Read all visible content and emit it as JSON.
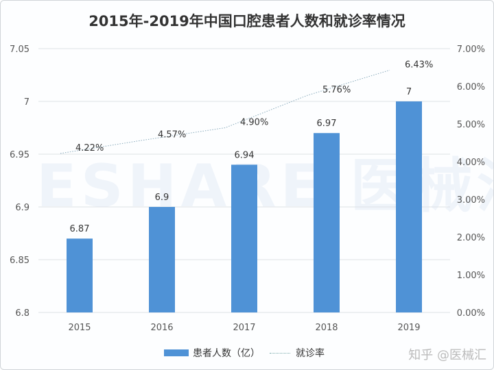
{
  "chart_data": {
    "type": "bar",
    "title": "2015年-2019年中国口腔患者人数和就诊率情况",
    "categories": [
      "2015",
      "2016",
      "2017",
      "2018",
      "2019"
    ],
    "series": [
      {
        "name": "患者人数（亿）",
        "type": "bar",
        "axis": "left",
        "values": [
          6.87,
          6.9,
          6.94,
          6.97,
          7
        ],
        "labels": [
          "6.87",
          "6.9",
          "6.94",
          "6.97",
          "7"
        ],
        "color": "#4f92d6"
      },
      {
        "name": "就诊率",
        "type": "line",
        "axis": "right",
        "values": [
          4.22,
          4.57,
          4.9,
          5.76,
          6.43
        ],
        "labels": [
          "4.22%",
          "4.57%",
          "4.90%",
          "5.76%",
          "6.43%"
        ],
        "color": "#8ab"
      }
    ],
    "ylim_left": [
      6.8,
      7.05
    ],
    "yticks_left": [
      "6.8",
      "6.85",
      "6.9",
      "6.95",
      "7",
      "7.05"
    ],
    "ylim_right": [
      0,
      7
    ],
    "yticks_right": [
      "0.00%",
      "1.00%",
      "2.00%",
      "3.00%",
      "4.00%",
      "5.00%",
      "6.00%",
      "7.00%"
    ],
    "grid": true,
    "legend": "bottom"
  },
  "watermark": "ESHARE|医械汇",
  "source_mark": "知乎 @医械汇"
}
